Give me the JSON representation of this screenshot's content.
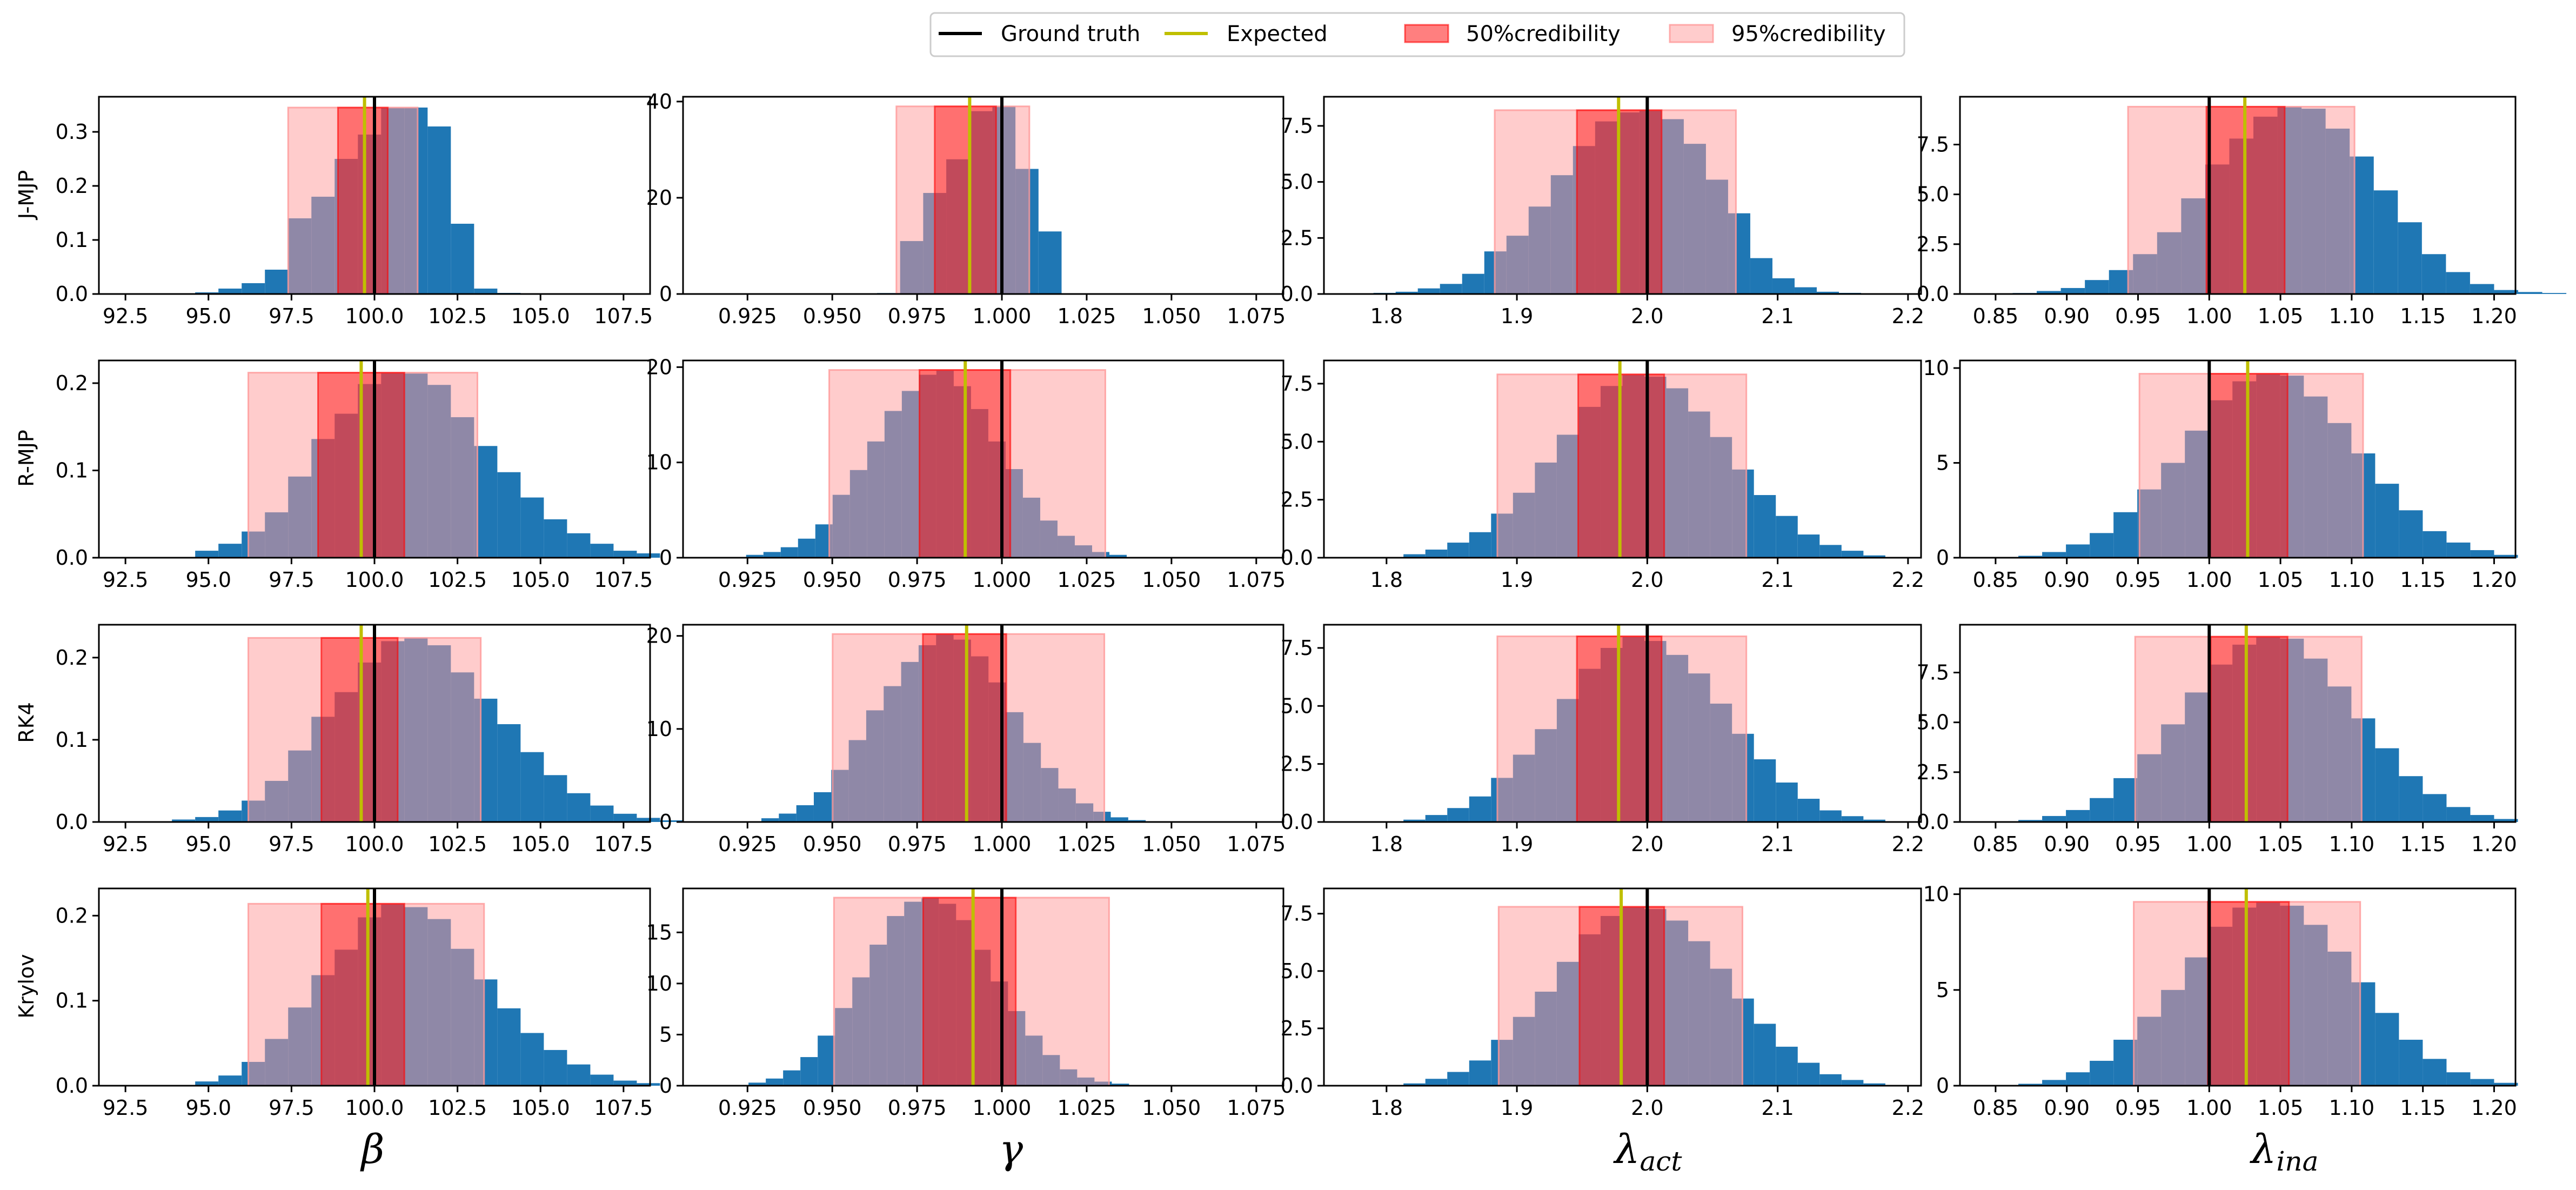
{
  "colors": {
    "histogram": "#1f77b4",
    "ground_truth": "#000000",
    "expected": "#bfbf00",
    "cred50": "#ff0000",
    "cred95": "#ff9999"
  },
  "legend": {
    "ground_truth": "Ground truth",
    "expected": "Expected",
    "cred50": "50%credibility",
    "cred95": "95%credibility"
  },
  "rows": [
    "J-MJP",
    "R-MJP",
    "RK4",
    "Krylov"
  ],
  "columns": [
    {
      "symbol": "β",
      "sub": "",
      "ticks": [
        "92.5",
        "95.0",
        "97.5",
        "100.0",
        "102.5",
        "105.0",
        "107.5"
      ],
      "xlim": [
        91.7,
        108.3
      ],
      "truth": 100.0
    },
    {
      "symbol": "γ",
      "sub": "",
      "ticks": [
        "0.925",
        "0.950",
        "0.975",
        "1.000",
        "1.025",
        "1.050",
        "1.075"
      ],
      "xlim": [
        0.906,
        1.083
      ],
      "truth": 1.0
    },
    {
      "symbol": "λ",
      "sub": "act",
      "ticks": [
        "1.8",
        "1.9",
        "2.0",
        "2.1",
        "2.2"
      ],
      "xlim": [
        1.752,
        2.21
      ],
      "truth": 2.0
    },
    {
      "symbol": "λ",
      "sub": "ina",
      "ticks": [
        "0.85",
        "0.90",
        "0.95",
        "1.00",
        "1.05",
        "1.10",
        "1.15",
        "1.20"
      ],
      "xlim": [
        0.825,
        1.215
      ],
      "truth": 1.0
    }
  ],
  "chart_data": [
    {
      "type": "bar",
      "row": "J-MJP",
      "xlabel": "β",
      "ylim": [
        0,
        0.365
      ],
      "yticks": [
        "0.0",
        "0.1",
        "0.2",
        "0.3"
      ],
      "bins": {
        "start": 94.6,
        "width": 0.7,
        "values": [
          0.003,
          0.01,
          0.02,
          0.045,
          0.14,
          0.18,
          0.25,
          0.295,
          0.345,
          0.345,
          0.31,
          0.13,
          0.01,
          0.002
        ]
      },
      "cred95": [
        97.4,
        101.3
      ],
      "cred50": [
        98.9,
        100.4
      ],
      "expected": 99.7,
      "truth": 100.0
    },
    {
      "type": "bar",
      "row": "J-MJP",
      "xlabel": "γ",
      "ylim": [
        0,
        41
      ],
      "yticks": [
        "0",
        "20",
        "40"
      ],
      "bins": {
        "start": 0.9632,
        "width": 0.0068,
        "values": [
          0.2,
          11,
          21,
          28,
          38,
          39,
          26,
          13
        ]
      },
      "cred95": [
        0.9689,
        1.0081
      ],
      "cred50": [
        0.9802,
        0.9983
      ],
      "expected": 0.9905,
      "truth": 1.0
    },
    {
      "type": "bar",
      "row": "J-MJP",
      "xlabel": "λ act",
      "ylim": [
        0,
        8.8
      ],
      "yticks": [
        "0.0",
        "2.5",
        "5.0",
        "7.5"
      ],
      "bins": {
        "start": 1.79,
        "width": 0.017,
        "values": [
          0.05,
          0.1,
          0.25,
          0.45,
          0.9,
          1.9,
          2.6,
          3.9,
          5.3,
          6.6,
          7.7,
          8.1,
          8.2,
          7.8,
          6.7,
          5.1,
          3.6,
          1.6,
          0.7,
          0.3,
          0.1,
          0.05,
          0.02
        ]
      },
      "cred95": [
        1.883,
        2.068
      ],
      "cred50": [
        1.946,
        2.011
      ],
      "expected": 1.978,
      "truth": 2.0
    },
    {
      "type": "bar",
      "row": "J-MJP",
      "xlabel": "λ ina",
      "ylim": [
        0,
        9.9
      ],
      "yticks": [
        "0.0",
        "2.5",
        "5.0",
        "7.5"
      ],
      "bins": {
        "start": 0.862,
        "width": 0.0169,
        "values": [
          0.05,
          0.15,
          0.3,
          0.7,
          1.2,
          2.0,
          3.1,
          4.8,
          6.5,
          7.8,
          8.9,
          9.4,
          9.3,
          8.3,
          6.9,
          5.2,
          3.6,
          2.0,
          1.1,
          0.5,
          0.2,
          0.1,
          0.05
        ]
      },
      "cred95": [
        0.943,
        1.102
      ],
      "cred50": [
        0.998,
        1.053
      ],
      "expected": 1.025,
      "truth": 1.0
    },
    {
      "type": "bar",
      "row": "R-MJP",
      "xlabel": "β",
      "ylim": [
        0,
        0.226
      ],
      "yticks": [
        "0.0",
        "0.1",
        "0.2"
      ],
      "bins": {
        "start": 94.6,
        "width": 0.7,
        "values": [
          0.008,
          0.016,
          0.03,
          0.052,
          0.093,
          0.136,
          0.165,
          0.199,
          0.212,
          0.211,
          0.198,
          0.161,
          0.128,
          0.098,
          0.069,
          0.044,
          0.028,
          0.016,
          0.008,
          0.005
        ]
      },
      "cred95": [
        96.2,
        103.1
      ],
      "cred50": [
        98.3,
        100.9
      ],
      "expected": 99.6,
      "truth": 100.0
    },
    {
      "type": "bar",
      "row": "R-MJP",
      "xlabel": "γ",
      "ylim": [
        0,
        20.7
      ],
      "yticks": [
        "0",
        "10",
        "20"
      ],
      "bins": {
        "start": 0.9246,
        "width": 0.0051,
        "values": [
          0.3,
          0.6,
          1.1,
          2.0,
          3.5,
          6.6,
          9.2,
          12.2,
          15.4,
          17.5,
          19.2,
          19.7,
          18.0,
          15.6,
          12.2,
          9.3,
          6.3,
          3.9,
          2.3,
          1.3,
          0.6,
          0.3
        ]
      },
      "cred95": [
        0.9491,
        1.0305
      ],
      "cred50": [
        0.9757,
        1.0025
      ],
      "expected": 0.9892,
      "truth": 1.0
    },
    {
      "type": "bar",
      "row": "R-MJP",
      "xlabel": "λ act",
      "ylim": [
        0,
        8.5
      ],
      "yticks": [
        "0.0",
        "2.5",
        "5.0",
        "7.5"
      ],
      "bins": {
        "start": 1.813,
        "width": 0.0168,
        "values": [
          0.15,
          0.35,
          0.65,
          1.1,
          1.9,
          2.8,
          4.1,
          5.3,
          6.5,
          7.4,
          7.9,
          7.8,
          7.3,
          6.3,
          5.2,
          3.8,
          2.7,
          1.8,
          1.0,
          0.55,
          0.3,
          0.1
        ]
      },
      "cred95": [
        1.885,
        2.076
      ],
      "cred50": [
        1.947,
        2.013
      ],
      "expected": 1.979,
      "truth": 2.0
    },
    {
      "type": "bar",
      "row": "R-MJP",
      "xlabel": "λ ina",
      "ylim": [
        0,
        10.4
      ],
      "yticks": [
        "0",
        "5",
        "10"
      ],
      "bins": {
        "start": 0.866,
        "width": 0.0167,
        "values": [
          0.1,
          0.3,
          0.7,
          1.3,
          2.4,
          3.6,
          5.0,
          6.7,
          8.3,
          9.3,
          9.7,
          9.6,
          8.5,
          7.1,
          5.5,
          3.9,
          2.5,
          1.4,
          0.8,
          0.4,
          0.15
        ]
      },
      "cred95": [
        0.951,
        1.108
      ],
      "cred50": [
        1.0,
        1.055
      ],
      "expected": 1.027,
      "truth": 1.0
    },
    {
      "type": "bar",
      "row": "RK4",
      "xlabel": "β",
      "ylim": [
        0,
        0.24
      ],
      "yticks": [
        "0.0",
        "0.1",
        "0.2"
      ],
      "bins": {
        "start": 93.9,
        "width": 0.7,
        "values": [
          0.003,
          0.006,
          0.014,
          0.026,
          0.05,
          0.087,
          0.128,
          0.158,
          0.194,
          0.22,
          0.224,
          0.215,
          0.182,
          0.15,
          0.119,
          0.085,
          0.057,
          0.035,
          0.02,
          0.01,
          0.005,
          0.002
        ]
      },
      "cred95": [
        96.2,
        103.2
      ],
      "cred50": [
        98.4,
        100.7
      ],
      "expected": 99.6,
      "truth": 100.0
    },
    {
      "type": "bar",
      "row": "RK4",
      "xlabel": "γ",
      "ylim": [
        0,
        21.2
      ],
      "yticks": [
        "0",
        "10",
        "20"
      ],
      "bins": {
        "start": 0.9291,
        "width": 0.00515,
        "values": [
          0.4,
          0.9,
          1.8,
          3.2,
          5.6,
          8.8,
          12.0,
          14.6,
          17.2,
          19.0,
          20.2,
          19.6,
          17.8,
          15.0,
          11.8,
          8.5,
          5.8,
          3.6,
          2.0,
          1.1,
          0.5,
          0.2
        ]
      },
      "cred95": [
        0.9501,
        1.0302
      ],
      "cred50": [
        0.9767,
        1.0013
      ],
      "expected": 0.9896,
      "truth": 1.0
    },
    {
      "type": "bar",
      "row": "RK4",
      "xlabel": "λ act",
      "ylim": [
        0,
        8.5
      ],
      "yticks": [
        "0.0",
        "2.5",
        "5.0",
        "7.5"
      ],
      "bins": {
        "start": 1.813,
        "width": 0.0168,
        "values": [
          0.1,
          0.3,
          0.6,
          1.1,
          1.9,
          2.9,
          4.0,
          5.3,
          6.6,
          7.5,
          8.0,
          7.8,
          7.2,
          6.4,
          5.1,
          3.8,
          2.7,
          1.7,
          1.0,
          0.5,
          0.25,
          0.1
        ]
      },
      "cred95": [
        1.885,
        2.076
      ],
      "cred50": [
        1.946,
        2.011
      ],
      "expected": 1.978,
      "truth": 2.0
    },
    {
      "type": "bar",
      "row": "RK4",
      "xlabel": "λ ina",
      "ylim": [
        0,
        9.9
      ],
      "yticks": [
        "0.0",
        "2.5",
        "5.0",
        "7.5"
      ],
      "bins": {
        "start": 0.866,
        "width": 0.0167,
        "values": [
          0.1,
          0.3,
          0.6,
          1.2,
          2.2,
          3.4,
          4.9,
          6.5,
          7.9,
          8.9,
          9.3,
          9.2,
          8.2,
          6.8,
          5.2,
          3.7,
          2.3,
          1.4,
          0.75,
          0.35,
          0.15
        ]
      },
      "cred95": [
        0.948,
        1.107
      ],
      "cred50": [
        1.001,
        1.055
      ],
      "expected": 1.026,
      "truth": 1.0
    },
    {
      "type": "bar",
      "row": "Krylov",
      "xlabel": "β",
      "ylim": [
        0,
        0.232
      ],
      "yticks": [
        "0.0",
        "0.1",
        "0.2"
      ],
      "bins": {
        "start": 94.6,
        "width": 0.7,
        "values": [
          0.005,
          0.012,
          0.028,
          0.055,
          0.092,
          0.13,
          0.16,
          0.198,
          0.214,
          0.21,
          0.196,
          0.161,
          0.125,
          0.091,
          0.062,
          0.042,
          0.025,
          0.013,
          0.006,
          0.003
        ]
      },
      "cred95": [
        96.2,
        103.3
      ],
      "cred50": [
        98.4,
        100.9
      ],
      "expected": 99.8,
      "truth": 100.0
    },
    {
      "type": "bar",
      "row": "Krylov",
      "xlabel": "γ",
      "ylim": [
        0,
        19.3
      ],
      "yticks": [
        "0",
        "5",
        "10",
        "15"
      ],
      "bins": {
        "start": 0.9253,
        "width": 0.0051,
        "values": [
          0.3,
          0.7,
          1.5,
          2.8,
          4.9,
          7.6,
          10.6,
          13.8,
          16.6,
          18.0,
          18.4,
          17.8,
          16.2,
          13.3,
          10.2,
          7.3,
          4.9,
          3.0,
          1.6,
          0.8,
          0.4,
          0.2
        ]
      },
      "cred95": [
        0.9505,
        1.0316
      ],
      "cred50": [
        0.9768,
        1.0041
      ],
      "expected": 0.9915,
      "truth": 1.0
    },
    {
      "type": "bar",
      "row": "Krylov",
      "xlabel": "λ act",
      "ylim": [
        0,
        8.6
      ],
      "yticks": [
        "0.0",
        "2.5",
        "5.0",
        "7.5"
      ],
      "bins": {
        "start": 1.813,
        "width": 0.0168,
        "values": [
          0.1,
          0.3,
          0.6,
          1.1,
          2.0,
          3.0,
          4.1,
          5.4,
          6.6,
          7.4,
          7.8,
          7.7,
          7.2,
          6.3,
          5.1,
          3.8,
          2.7,
          1.7,
          1.0,
          0.5,
          0.25,
          0.1
        ]
      },
      "cred95": [
        1.886,
        2.073
      ],
      "cred50": [
        1.948,
        2.013
      ],
      "expected": 1.98,
      "truth": 2.0
    },
    {
      "type": "bar",
      "row": "Krylov",
      "xlabel": "λ ina",
      "ylim": [
        0,
        10.3
      ],
      "yticks": [
        "0",
        "5",
        "10"
      ],
      "bins": {
        "start": 0.866,
        "width": 0.0167,
        "values": [
          0.1,
          0.3,
          0.7,
          1.3,
          2.4,
          3.6,
          5.0,
          6.7,
          8.3,
          9.3,
          9.6,
          9.4,
          8.4,
          7.0,
          5.4,
          3.8,
          2.4,
          1.4,
          0.7,
          0.35,
          0.15
        ]
      },
      "cred95": [
        0.947,
        1.106
      ],
      "cred50": [
        0.999,
        1.056
      ],
      "expected": 1.026,
      "truth": 1.0
    }
  ]
}
